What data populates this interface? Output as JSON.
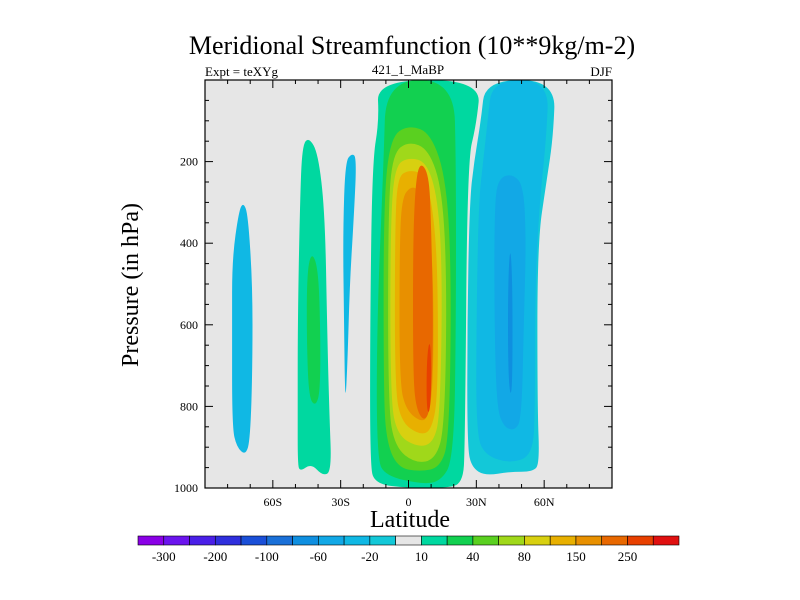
{
  "chart_data": {
    "type": "contour",
    "title": "Meridional Streamfunction (10**9kg/m-2)",
    "subtitle_left": "Expt = teXYg",
    "subtitle_center": "421_1_MaBP",
    "subtitle_right": "DJF",
    "xlabel": "Latitude",
    "ylabel": "Pressure (in hPa)",
    "xlim": [
      -90,
      90
    ],
    "ylim": [
      1000,
      0
    ],
    "x_ticks": [
      {
        "value": -60,
        "label": "60S"
      },
      {
        "value": -30,
        "label": "30S"
      },
      {
        "value": 0,
        "label": "0"
      },
      {
        "value": 30,
        "label": "30N"
      },
      {
        "value": 60,
        "label": "60N"
      }
    ],
    "y_ticks": [
      {
        "value": 200,
        "label": "200"
      },
      {
        "value": 400,
        "label": "400"
      },
      {
        "value": 600,
        "label": "600"
      },
      {
        "value": 800,
        "label": "800"
      },
      {
        "value": 1000,
        "label": "1000"
      }
    ],
    "background_color": "#e6e6e6",
    "colorbar": {
      "boundaries": [
        -400,
        -300,
        -250,
        -200,
        -150,
        -100,
        -80,
        -60,
        -40,
        -20,
        -10,
        10,
        20,
        40,
        60,
        80,
        100,
        150,
        200,
        250,
        300,
        400
      ],
      "labels": [
        {
          "after_index": 0,
          "text": "-300"
        },
        {
          "after_index": 2,
          "text": "-200"
        },
        {
          "after_index": 4,
          "text": "-100"
        },
        {
          "after_index": 6,
          "text": "-60"
        },
        {
          "after_index": 8,
          "text": "-20"
        },
        {
          "after_index": 10,
          "text": "10"
        },
        {
          "after_index": 12,
          "text": "40"
        },
        {
          "after_index": 14,
          "text": "80"
        },
        {
          "after_index": 16,
          "text": "150"
        },
        {
          "after_index": 18,
          "text": "250"
        }
      ],
      "colors": [
        "#8a00e6",
        "#6b14ee",
        "#4a1fe8",
        "#2f2fdd",
        "#1a4fd8",
        "#1a70d8",
        "#0f8fe0",
        "#12a8e6",
        "#10b8e4",
        "#13c8d8",
        "#e6e6e6",
        "#00d8a0",
        "#12d050",
        "#5ad020",
        "#a0d81a",
        "#d8d010",
        "#e8b000",
        "#e89000",
        "#e86800",
        "#e84000",
        "#e01010"
      ]
    },
    "contour_regions": [
      {
        "label": "SH outer cell",
        "level": -20,
        "color": "#10b8e4",
        "outline": [
          [
            -78,
            440
          ],
          [
            -75,
            320
          ],
          [
            -73,
            300
          ],
          [
            -71,
            330
          ],
          [
            -69,
            500
          ],
          [
            -69,
            700
          ],
          [
            -70,
            880
          ],
          [
            -72,
            920
          ],
          [
            -76,
            900
          ],
          [
            -78,
            850
          ],
          [
            -78,
            600
          ]
        ]
      },
      {
        "label": "SH mid cell",
        "level": 10,
        "color": "#00d8a0",
        "outline": [
          [
            -49,
            820
          ],
          [
            -49,
            600
          ],
          [
            -48,
            300
          ],
          [
            -47,
            160
          ],
          [
            -44,
            140
          ],
          [
            -40,
            180
          ],
          [
            -37,
            320
          ],
          [
            -36,
            600
          ],
          [
            -35,
            820
          ],
          [
            -34,
            960
          ],
          [
            -38,
            970
          ],
          [
            -43,
            940
          ],
          [
            -48,
            960
          ],
          [
            -49,
            940
          ]
        ]
      },
      {
        "label": "SH mid cell inner",
        "level": 20,
        "color": "#12d050",
        "outline": [
          [
            -45,
            650
          ],
          [
            -45,
            480
          ],
          [
            -43,
            420
          ],
          [
            -40,
            460
          ],
          [
            -39,
            600
          ],
          [
            -39,
            760
          ],
          [
            -41,
            800
          ],
          [
            -44,
            780
          ]
        ]
      },
      {
        "label": "SH thin cell",
        "level": -20,
        "color": "#10b8e4",
        "outline": [
          [
            -28,
            200
          ],
          [
            -25,
            180
          ],
          [
            -23,
            190
          ],
          [
            -24,
            320
          ],
          [
            -26,
            500
          ],
          [
            -27,
            700
          ],
          [
            -28,
            800
          ],
          [
            -28.5,
            600
          ],
          [
            -29,
            380
          ]
        ]
      },
      {
        "label": "Hadley cell 10",
        "level": 10,
        "color": "#00d8a0",
        "outline": [
          [
            -14,
            0
          ],
          [
            -13,
            100
          ],
          [
            -16,
            200
          ],
          [
            -17,
            600
          ],
          [
            -17,
            940
          ],
          [
            -15,
            990
          ],
          [
            0,
            1000
          ],
          [
            16,
            1000
          ],
          [
            24,
            990
          ],
          [
            25,
            900
          ],
          [
            26,
            200
          ],
          [
            30,
            110
          ],
          [
            32,
            0
          ]
        ]
      },
      {
        "label": "Hadley cell 20",
        "level": 20,
        "color": "#12d050",
        "outline": [
          [
            -10,
            0
          ],
          [
            -11,
            200
          ],
          [
            -14,
            600
          ],
          [
            -14,
            930
          ],
          [
            -10,
            970
          ],
          [
            5,
            990
          ],
          [
            14,
            985
          ],
          [
            20,
            930
          ],
          [
            21,
            600
          ],
          [
            21,
            200
          ],
          [
            20,
            0
          ]
        ]
      },
      {
        "label": "Hadley cell 40",
        "level": 40,
        "color": "#5ad020",
        "outline": [
          [
            -8,
            140
          ],
          [
            -11,
            300
          ],
          [
            -11,
            750
          ],
          [
            -10,
            880
          ],
          [
            -5,
            950
          ],
          [
            5,
            960
          ],
          [
            14,
            950
          ],
          [
            18,
            880
          ],
          [
            19,
            500
          ],
          [
            17,
            250
          ],
          [
            10,
            130
          ],
          [
            0,
            110
          ]
        ]
      },
      {
        "label": "Hadley cell 60",
        "level": 60,
        "color": "#a0d81a",
        "outline": [
          [
            -7,
            180
          ],
          [
            -9,
            320
          ],
          [
            -9,
            800
          ],
          [
            -6,
            900
          ],
          [
            3,
            940
          ],
          [
            12,
            930
          ],
          [
            16,
            850
          ],
          [
            17,
            500
          ],
          [
            15,
            270
          ],
          [
            9,
            170
          ],
          [
            0,
            150
          ]
        ]
      },
      {
        "label": "Hadley cell 80",
        "level": 80,
        "color": "#d8d010",
        "outline": [
          [
            -6,
            210
          ],
          [
            -8,
            350
          ],
          [
            -8,
            780
          ],
          [
            -5,
            870
          ],
          [
            4,
            900
          ],
          [
            11,
            890
          ],
          [
            14,
            820
          ],
          [
            15,
            480
          ],
          [
            13,
            290
          ],
          [
            8,
            200
          ],
          [
            0,
            190
          ]
        ]
      },
      {
        "label": "Hadley cell 100",
        "level": 100,
        "color": "#e8b000",
        "outline": [
          [
            -5,
            240
          ],
          [
            -6,
            380
          ],
          [
            -6,
            760
          ],
          [
            -3,
            840
          ],
          [
            5,
            870
          ],
          [
            10,
            860
          ],
          [
            13,
            780
          ],
          [
            13,
            480
          ],
          [
            11,
            320
          ],
          [
            7,
            230
          ],
          [
            0,
            220
          ]
        ]
      },
      {
        "label": "Hadley cell 150",
        "level": 150,
        "color": "#e89000",
        "outline": [
          [
            -3,
            290
          ],
          [
            -4,
            420
          ],
          [
            -4,
            740
          ],
          [
            -1,
            810
          ],
          [
            6,
            840
          ],
          [
            9,
            820
          ],
          [
            11,
            740
          ],
          [
            11,
            480
          ],
          [
            9,
            340
          ],
          [
            5,
            270
          ],
          [
            1,
            260
          ]
        ]
      },
      {
        "label": "Hadley cell 200",
        "level": 200,
        "color": "#e86800",
        "outline": [
          [
            5,
            200
          ],
          [
            3,
            260
          ],
          [
            2,
            400
          ],
          [
            2,
            700
          ],
          [
            3,
            800
          ],
          [
            7,
            840
          ],
          [
            10,
            800
          ],
          [
            11,
            600
          ],
          [
            10,
            350
          ],
          [
            9,
            230
          ]
        ]
      },
      {
        "label": "Hadley cell 250",
        "level": 250,
        "color": "#e84000",
        "outline": [
          [
            9,
            640
          ],
          [
            8,
            700
          ],
          [
            8,
            800
          ],
          [
            9,
            820
          ],
          [
            10,
            780
          ],
          [
            10,
            660
          ]
        ]
      },
      {
        "label": "NH Ferrel cell -10",
        "level": -10,
        "color": "#13c8d8",
        "outline": [
          [
            34,
            0
          ],
          [
            32,
            100
          ],
          [
            29,
            200
          ],
          [
            27,
            300
          ],
          [
            26,
            600
          ],
          [
            26,
            900
          ],
          [
            28,
            950
          ],
          [
            34,
            970
          ],
          [
            45,
            960
          ],
          [
            55,
            960
          ],
          [
            58,
            940
          ],
          [
            57,
            800
          ],
          [
            57,
            400
          ],
          [
            61,
            250
          ],
          [
            64,
            140
          ],
          [
            65,
            0
          ]
        ]
      },
      {
        "label": "NH Ferrel cell -20",
        "level": -20,
        "color": "#10b8e4",
        "outline": [
          [
            37,
            0
          ],
          [
            35,
            100
          ],
          [
            33,
            200
          ],
          [
            31,
            300
          ],
          [
            30,
            600
          ],
          [
            30,
            870
          ],
          [
            34,
            920
          ],
          [
            45,
            940
          ],
          [
            55,
            920
          ],
          [
            56,
            800
          ],
          [
            56,
            500
          ],
          [
            58,
            300
          ],
          [
            61,
            140
          ],
          [
            62,
            0
          ]
        ]
      },
      {
        "label": "NH Ferrel cell -40",
        "level": -40,
        "color": "#12a8e6",
        "outline": [
          [
            40,
            240
          ],
          [
            38,
            300
          ],
          [
            38,
            600
          ],
          [
            39,
            800
          ],
          [
            42,
            850
          ],
          [
            47,
            860
          ],
          [
            50,
            830
          ],
          [
            51,
            600
          ],
          [
            52,
            400
          ],
          [
            51,
            260
          ],
          [
            46,
            230
          ]
        ]
      },
      {
        "label": "NH Ferrel cell -60",
        "level": -60,
        "color": "#0f8fe0",
        "outline": [
          [
            45,
            400
          ],
          [
            44,
            500
          ],
          [
            44,
            700
          ],
          [
            45,
            780
          ],
          [
            46,
            740
          ],
          [
            46,
            500
          ]
        ]
      }
    ]
  }
}
